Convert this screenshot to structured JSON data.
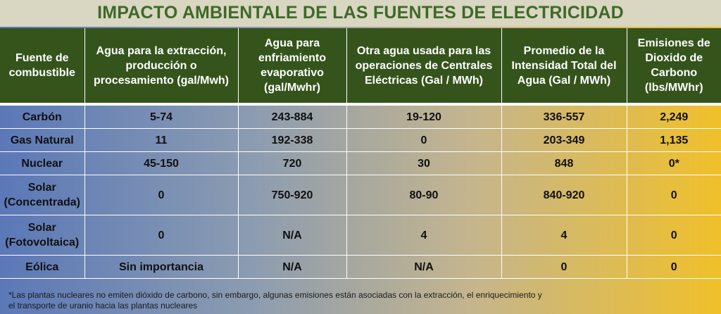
{
  "title": "IMPACTO AMBIENTALE DE LAS FUENTES DE ELECTRICIDAD",
  "table": {
    "headers": [
      "Fuente de combustible",
      "Agua para la extracción, producción o procesamiento (gal/Mwh)",
      "Agua para enfriamiento evaporativo (gal/Mwhr)",
      "Otra agua usada para las operaciones de Centrales Eléctricas (Gal / MWh)",
      "Promedio de la Intensidad Total del Agua (Gal / MWh)",
      "Emisiones de Dioxido de Carbono (lbs/MWhr)"
    ],
    "rows": [
      [
        "Carbón",
        "5-74",
        "243-884",
        "19-120",
        "336-557",
        "2,249"
      ],
      [
        "Gas Natural",
        "11",
        "192-338",
        "0",
        "203-349",
        "1,135"
      ],
      [
        "Nuclear",
        "45-150",
        "720",
        "30",
        "848",
        "0*"
      ],
      [
        "Solar (Concentrada)",
        "0",
        "750-920",
        "80-90",
        "840-920",
        "0"
      ],
      [
        "Solar (Fotovoltaica)",
        "0",
        "N/A",
        "4",
        "4",
        "0"
      ],
      [
        "Eólica",
        "Sin importancia",
        "N/A",
        "N/A",
        "0",
        "0"
      ]
    ]
  },
  "footnote": "*Las plantas nucleares no emiten dióxido de carbono, sin embargo, algunas emisiones están asociadas con la extracción, el enriquecimiento y el transporte de uranio hacia las plantas nucleares"
}
